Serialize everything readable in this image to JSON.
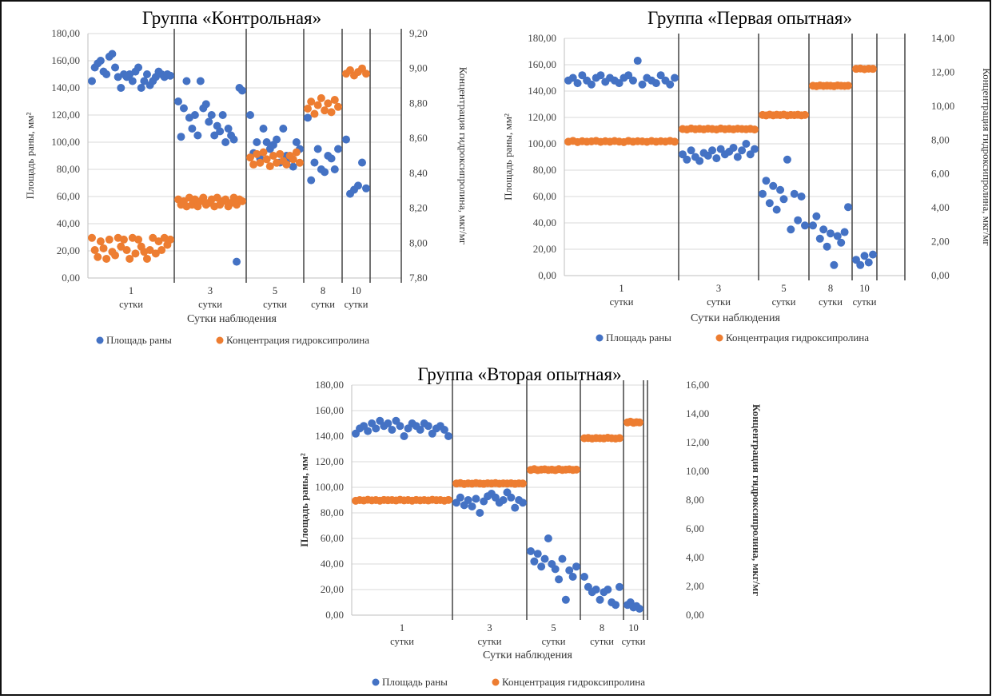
{
  "chart_data": [
    {
      "type": "scatter",
      "title": "Группа «Контрольная»",
      "xlabel": "Сутки наблюдения",
      "ylabel": "Площадь раны, мм²",
      "y2label": "Концентрация гидроксипролина, мкг/мг",
      "ylim": [
        0,
        180
      ],
      "y2lim": [
        7.8,
        9.2
      ],
      "yticks": [
        "0,00",
        "20,00",
        "40,00",
        "60,00",
        "80,00",
        "100,00",
        "120,00",
        "140,00",
        "160,00",
        "180,00"
      ],
      "y2ticks": [
        "7,80",
        "8,00",
        "8,20",
        "8,40",
        "8,60",
        "8,80",
        "9,00",
        "9,20"
      ],
      "categories": [
        {
          "num": "1",
          "label": "сутки"
        },
        {
          "num": "3",
          "label": "сутки"
        },
        {
          "num": "5",
          "label": "сутки"
        },
        {
          "num": "8",
          "label": "сутки"
        },
        {
          "num": "10",
          "label": "сутки"
        }
      ],
      "series": [
        {
          "name": "Площадь раны",
          "axis": "left",
          "color": "#4472c4",
          "values": [
            [
              145,
              155,
              158,
              160,
              152,
              150,
              163,
              165,
              155,
              148,
              140,
              150,
              148,
              150,
              145,
              152,
              155,
              140,
              145,
              150,
              142,
              145,
              148,
              152,
              150,
              148,
              150,
              149
            ],
            [
              130,
              104,
              125,
              145,
              118,
              110,
              120,
              105,
              145,
              125,
              128,
              115,
              120,
              105,
              112,
              108,
              120,
              100,
              110,
              105,
              102,
              12,
              140,
              138
            ],
            [
              120,
              92,
              100,
              88,
              110,
              100,
              95,
              98,
              102,
              85,
              110,
              90,
              88,
              82,
              100,
              95
            ],
            [
              118,
              72,
              85,
              95,
              80,
              78,
              90,
              88,
              80,
              95
            ],
            [
              102,
              62,
              65,
              68,
              85,
              66
            ]
          ]
        },
        {
          "name": "Концентрация гидроксипролина",
          "axis": "right",
          "color": "#ed7d31",
          "values": [
            [
              8.03,
              7.96,
              7.92,
              8.01,
              7.97,
              7.91,
              8.02,
              7.95,
              7.93,
              8.03,
              7.98,
              8.02,
              7.96,
              7.91,
              8.03,
              7.94,
              8.02,
              7.98,
              7.95,
              7.91,
              7.96,
              8.03,
              7.94,
              8.01,
              7.96,
              8.03,
              7.99,
              8.02
            ],
            [
              8.25,
              8.22,
              8.24,
              8.21,
              8.26,
              8.22,
              8.25,
              8.21,
              8.24,
              8.26,
              8.22,
              8.23,
              8.25,
              8.21,
              8.26,
              8.22,
              8.24,
              8.25,
              8.21,
              8.23,
              8.26,
              8.22,
              8.25,
              8.24
            ],
            [
              8.49,
              8.45,
              8.51,
              8.46,
              8.52,
              8.48,
              8.44,
              8.5,
              8.46,
              8.51,
              8.47,
              8.45,
              8.5,
              8.48,
              8.52,
              8.46
            ],
            [
              8.77,
              8.81,
              8.74,
              8.79,
              8.83,
              8.76,
              8.8,
              8.75,
              8.82,
              8.78
            ],
            [
              8.97,
              8.99,
              8.96,
              8.98,
              9.0,
              8.97
            ]
          ]
        }
      ],
      "legend": "bottom"
    },
    {
      "type": "scatter",
      "title": "Группа «Первая опытная»",
      "xlabel": "Сутки наблюдения",
      "ylabel": "Площадь раны, мм²",
      "y2label": "Концентрация гидроксипролина, мкг/мг",
      "ylim": [
        0,
        180
      ],
      "y2lim": [
        0,
        14
      ],
      "yticks": [
        "0,00",
        "20,00",
        "40,00",
        "60,00",
        "80,00",
        "100,00",
        "120,00",
        "140,00",
        "160,00",
        "180,00"
      ],
      "y2ticks": [
        "0,00",
        "2,00",
        "4,00",
        "6,00",
        "8,00",
        "10,00",
        "12,00",
        "14,00"
      ],
      "categories": [
        {
          "num": "1",
          "label": "сутки"
        },
        {
          "num": "3",
          "label": "сутки"
        },
        {
          "num": "5",
          "label": "сутки"
        },
        {
          "num": "8",
          "label": "сутки"
        },
        {
          "num": "10",
          "label": "сутки"
        }
      ],
      "series": [
        {
          "name": "Площадь раны",
          "axis": "left",
          "color": "#4472c4",
          "values": [
            [
              148,
              150,
              146,
              152,
              148,
              145,
              150,
              152,
              147,
              150,
              148,
              146,
              150,
              152,
              148,
              163,
              145,
              150,
              148,
              146,
              152,
              148,
              145,
              150
            ],
            [
              92,
              88,
              95,
              90,
              87,
              93,
              91,
              95,
              89,
              96,
              92,
              94,
              97,
              90,
              95,
              100,
              92,
              96
            ],
            [
              62,
              72,
              55,
              68,
              50,
              65,
              58,
              88,
              35,
              62,
              42,
              60,
              38
            ],
            [
              38,
              45,
              28,
              35,
              22,
              32,
              8,
              30,
              25,
              33,
              52
            ],
            [
              12,
              8,
              15,
              10,
              16
            ]
          ]
        },
        {
          "name": "Концентрация гидроксипролина",
          "axis": "right",
          "color": "#ed7d31",
          "values": [
            [
              7.9,
              7.95,
              7.88,
              7.93,
              7.9,
              7.92,
              7.95,
              7.89,
              7.93,
              7.9,
              7.94,
              7.91,
              7.88,
              7.95,
              7.9,
              7.93,
              7.92,
              7.89,
              7.94,
              7.9,
              7.93,
              7.91,
              7.95,
              7.9
            ],
            [
              8.65,
              8.62,
              8.68,
              8.64,
              8.66,
              8.63,
              8.67,
              8.65,
              8.62,
              8.68,
              8.64,
              8.66,
              8.63,
              8.67,
              8.65,
              8.64,
              8.66,
              8.62
            ],
            [
              9.48,
              9.45,
              9.5,
              9.46,
              9.49,
              9.47,
              9.5,
              9.45,
              9.48,
              9.47,
              9.49,
              9.46,
              9.48
            ],
            [
              11.2,
              11.18,
              11.22,
              11.19,
              11.21,
              11.2,
              11.18,
              11.22,
              11.2,
              11.19,
              11.21
            ],
            [
              12.2,
              12.22,
              12.18,
              12.21,
              12.2
            ]
          ]
        }
      ],
      "legend": "bottom"
    },
    {
      "type": "scatter",
      "title": "Группа «Вторая опытная»",
      "xlabel": "Сутки наблюдения",
      "ylabel": "Площадь раны, мм²",
      "y2label": "Концентрация гидроксипролина, мкг/мг",
      "ylim": [
        0,
        180
      ],
      "y2lim": [
        0,
        16
      ],
      "yticks": [
        "0,00",
        "20,00",
        "40,00",
        "60,00",
        "80,00",
        "100,00",
        "120,00",
        "140,00",
        "160,00",
        "180,00"
      ],
      "y2ticks": [
        "0,00",
        "2,00",
        "4,00",
        "6,00",
        "8,00",
        "10,00",
        "12,00",
        "14,00",
        "16,00"
      ],
      "categories": [
        {
          "num": "1",
          "label": "сутки"
        },
        {
          "num": "3",
          "label": "сутки"
        },
        {
          "num": "5",
          "label": "сутки"
        },
        {
          "num": "8",
          "label": "сутки"
        },
        {
          "num": "10",
          "label": "сутки"
        }
      ],
      "series": [
        {
          "name": "Площадь раны",
          "axis": "left",
          "color": "#4472c4",
          "values": [
            [
              142,
              146,
              148,
              144,
              150,
              146,
              152,
              148,
              150,
              145,
              152,
              148,
              140,
              146,
              150,
              148,
              145,
              150,
              148,
              142,
              146,
              148,
              145,
              140
            ],
            [
              88,
              92,
              86,
              90,
              85,
              91,
              80,
              89,
              93,
              95,
              92,
              88,
              90,
              96,
              92,
              84,
              90,
              88
            ],
            [
              50,
              42,
              48,
              38,
              44,
              60,
              40,
              36,
              28,
              44,
              12,
              35,
              30,
              38
            ],
            [
              30,
              22,
              18,
              20,
              12,
              18,
              20,
              10,
              8,
              22
            ],
            [
              8,
              10,
              6,
              7,
              5
            ]
          ]
        },
        {
          "name": "Концентрация гидроксипролина",
          "axis": "right",
          "color": "#ed7d31",
          "values": [
            [
              7.95,
              8.0,
              7.97,
              8.02,
              7.98,
              8.0,
              7.96,
              8.01,
              7.99,
              8.0,
              7.97,
              8.02,
              7.98,
              8.0,
              7.96,
              8.01,
              7.98,
              8.0,
              7.97,
              8.02,
              7.99,
              8.0,
              7.96,
              8.01
            ],
            [
              9.15,
              9.18,
              9.12,
              9.16,
              9.14,
              9.18,
              9.15,
              9.13,
              9.17,
              9.15,
              9.18,
              9.14,
              9.16,
              9.15,
              9.17,
              9.13,
              9.16,
              9.15
            ],
            [
              10.1,
              10.15,
              10.08,
              10.12,
              10.14,
              10.1,
              10.12,
              10.08,
              10.15,
              10.1,
              10.12,
              10.14,
              10.1,
              10.12
            ],
            [
              12.3,
              12.32,
              12.28,
              12.31,
              12.3,
              12.29,
              12.33,
              12.3,
              12.28,
              12.31
            ],
            [
              13.4,
              13.45,
              13.38,
              13.42,
              13.4
            ]
          ]
        }
      ],
      "legend": "bottom"
    }
  ]
}
